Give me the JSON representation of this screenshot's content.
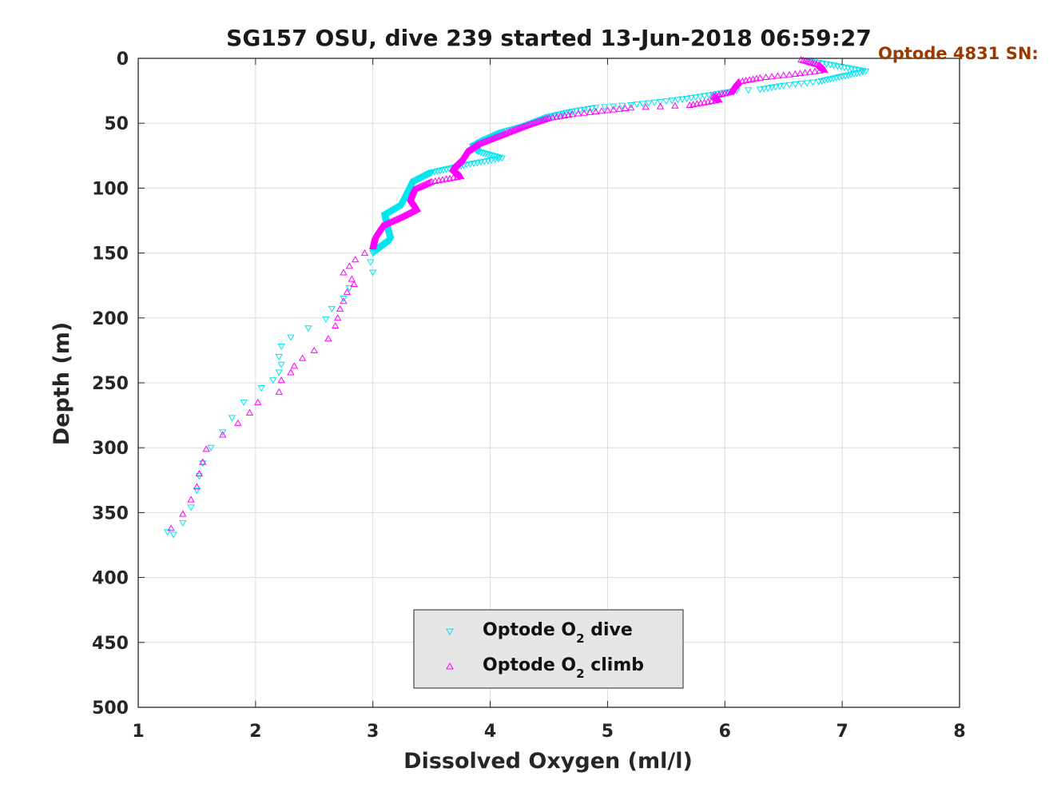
{
  "chart_data": {
    "type": "scatter",
    "title": "SG157 OSU, dive 239 started 13-Jun-2018 06:59:27",
    "annotation": "Optode 4831 SN:",
    "xlabel": "Dissolved Oxygen (ml/l)",
    "ylabel": "Depth (m)",
    "xlim": [
      1,
      8
    ],
    "ylim": [
      0,
      500
    ],
    "y_reversed": true,
    "grid": true,
    "legend_position": "bottom-center",
    "xticks": [
      "1",
      "2",
      "3",
      "4",
      "5",
      "6",
      "7",
      "8"
    ],
    "yticks": [
      "0",
      "50",
      "100",
      "150",
      "200",
      "250",
      "300",
      "350",
      "400",
      "450",
      "500"
    ],
    "series": [
      {
        "name": "Optode O2 dive",
        "legend_main": "Optode O",
        "legend_sub": "2",
        "legend_suffix": " dive",
        "marker": "triangle-down",
        "color": "#00e5ee",
        "path": [
          [
            6.7,
            2
          ],
          [
            6.9,
            5
          ],
          [
            7.2,
            10
          ],
          [
            7.0,
            14
          ],
          [
            6.8,
            18
          ],
          [
            6.5,
            21
          ],
          [
            6.3,
            24
          ],
          [
            6.1,
            25
          ],
          [
            5.9,
            28
          ],
          [
            5.6,
            32
          ],
          [
            5.2,
            36
          ],
          [
            4.9,
            38
          ],
          [
            4.7,
            41
          ],
          [
            4.5,
            45
          ],
          [
            4.3,
            52
          ],
          [
            4.1,
            57
          ],
          [
            3.95,
            63
          ],
          [
            3.85,
            68
          ],
          [
            3.9,
            72
          ],
          [
            4.1,
            77
          ],
          [
            3.8,
            82
          ],
          [
            3.5,
            88
          ],
          [
            3.35,
            95
          ],
          [
            3.3,
            104
          ],
          [
            3.25,
            113
          ],
          [
            3.1,
            121
          ],
          [
            3.12,
            130
          ],
          [
            3.15,
            140
          ],
          [
            3.0,
            150
          ]
        ],
        "path_step": 0.5,
        "sparse": [
          [
            2.98,
            157
          ],
          [
            3.0,
            165
          ],
          [
            2.8,
            177
          ],
          [
            2.75,
            185
          ],
          [
            2.65,
            193
          ],
          [
            2.6,
            201
          ],
          [
            2.45,
            208
          ],
          [
            2.3,
            215
          ],
          [
            2.22,
            222
          ],
          [
            2.2,
            230
          ],
          [
            2.22,
            236
          ],
          [
            2.2,
            242
          ],
          [
            2.15,
            248
          ],
          [
            2.05,
            254
          ],
          [
            1.9,
            265
          ],
          [
            1.8,
            277
          ],
          [
            1.72,
            288
          ],
          [
            1.62,
            300
          ],
          [
            1.55,
            312
          ],
          [
            1.52,
            322
          ],
          [
            1.5,
            333
          ],
          [
            1.45,
            346
          ],
          [
            1.38,
            358
          ],
          [
            1.25,
            365
          ],
          [
            1.3,
            367
          ]
        ]
      },
      {
        "name": "Optode O2 climb",
        "legend_main": "Optode O",
        "legend_sub": "2",
        "legend_suffix": " climb",
        "marker": "triangle-up",
        "color": "#ff00ff",
        "path": [
          [
            6.65,
            1
          ],
          [
            6.8,
            5
          ],
          [
            6.85,
            9
          ],
          [
            6.6,
            12
          ],
          [
            6.3,
            15
          ],
          [
            6.12,
            18
          ],
          [
            6.08,
            22
          ],
          [
            6.05,
            26
          ],
          [
            5.9,
            29
          ],
          [
            5.95,
            32
          ],
          [
            5.7,
            36
          ],
          [
            5.2,
            38
          ],
          [
            4.7,
            43
          ],
          [
            4.5,
            46
          ],
          [
            4.3,
            52
          ],
          [
            4.1,
            59
          ],
          [
            3.9,
            66
          ],
          [
            3.8,
            72
          ],
          [
            3.75,
            79
          ],
          [
            3.68,
            85
          ],
          [
            3.75,
            91
          ],
          [
            3.5,
            95
          ],
          [
            3.35,
            101
          ],
          [
            3.32,
            108
          ],
          [
            3.38,
            116
          ],
          [
            3.25,
            122
          ],
          [
            3.08,
            129
          ],
          [
            3.02,
            137
          ],
          [
            3.0,
            145
          ]
        ],
        "path_step": 0.5,
        "sparse": [
          [
            2.93,
            150
          ],
          [
            2.85,
            155
          ],
          [
            2.8,
            160
          ],
          [
            2.75,
            165
          ],
          [
            2.82,
            170
          ],
          [
            2.84,
            174
          ],
          [
            2.78,
            180
          ],
          [
            2.75,
            187
          ],
          [
            2.72,
            193
          ],
          [
            2.7,
            200
          ],
          [
            2.68,
            206
          ],
          [
            2.62,
            216
          ],
          [
            2.5,
            225
          ],
          [
            2.4,
            231
          ],
          [
            2.33,
            237
          ],
          [
            2.3,
            242
          ],
          [
            2.22,
            248
          ],
          [
            2.2,
            257
          ],
          [
            2.02,
            265
          ],
          [
            1.95,
            273
          ],
          [
            1.85,
            281
          ],
          [
            1.72,
            290
          ],
          [
            1.58,
            301
          ],
          [
            1.55,
            311
          ],
          [
            1.52,
            320
          ],
          [
            1.5,
            330
          ],
          [
            1.45,
            340
          ],
          [
            1.38,
            351
          ],
          [
            1.28,
            362
          ]
        ]
      }
    ]
  }
}
